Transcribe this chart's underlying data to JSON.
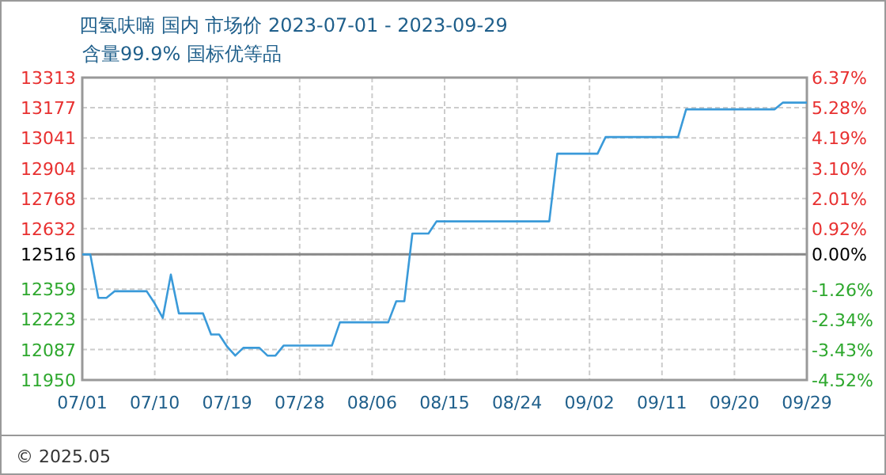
{
  "chart_data": {
    "type": "line",
    "title": "四氢呋喃 国内 市场价 2023-07-01 - 2023-09-29",
    "subtitle": "含量99.9% 国标优等品",
    "x": [
      "2023-07-01",
      "2023-07-02",
      "2023-07-03",
      "2023-07-04",
      "2023-07-05",
      "2023-07-09",
      "2023-07-10",
      "2023-07-11",
      "2023-07-12",
      "2023-07-13",
      "2023-07-16",
      "2023-07-17",
      "2023-07-18",
      "2023-07-19",
      "2023-07-20",
      "2023-07-21",
      "2023-07-23",
      "2023-07-24",
      "2023-07-25",
      "2023-07-26",
      "2023-08-01",
      "2023-08-02",
      "2023-08-08",
      "2023-08-09",
      "2023-08-10",
      "2023-08-11",
      "2023-08-13",
      "2023-08-14",
      "2023-08-28",
      "2023-08-29",
      "2023-09-03",
      "2023-09-04",
      "2023-09-13",
      "2023-09-14",
      "2023-09-25",
      "2023-09-26",
      "2023-09-29"
    ],
    "values": [
      12516,
      12516,
      12320,
      12320,
      12350,
      12350,
      12295,
      12230,
      12425,
      12250,
      12250,
      12155,
      12155,
      12100,
      12060,
      12095,
      12095,
      12060,
      12060,
      12105,
      12105,
      12210,
      12210,
      12305,
      12305,
      12610,
      12610,
      12665,
      12665,
      12970,
      12970,
      13045,
      13045,
      13170,
      13170,
      13200,
      13200
    ],
    "color": "#3a9ad9",
    "marker": "none",
    "line_style": "solid",
    "grid": true,
    "xlim": [
      "2023-07-01",
      "2023-09-29"
    ],
    "xticks": [
      {
        "value": "2023-07-01",
        "label": "07/01"
      },
      {
        "value": "2023-07-10",
        "label": "07/10"
      },
      {
        "value": "2023-07-19",
        "label": "07/19"
      },
      {
        "value": "2023-07-28",
        "label": "07/28"
      },
      {
        "value": "2023-08-06",
        "label": "08/06"
      },
      {
        "value": "2023-08-15",
        "label": "08/15"
      },
      {
        "value": "2023-08-24",
        "label": "08/24"
      },
      {
        "value": "2023-09-02",
        "label": "09/02"
      },
      {
        "value": "2023-09-11",
        "label": "09/11"
      },
      {
        "value": "2023-09-20",
        "label": "09/20"
      },
      {
        "value": "2023-09-29",
        "label": "09/29"
      }
    ],
    "ylim": [
      11950,
      13313
    ],
    "yticks": [
      11950,
      12087,
      12223,
      12359,
      12516,
      12632,
      12768,
      12904,
      13041,
      13177,
      13313
    ],
    "y2lim": [
      -4.52,
      6.37
    ],
    "y2ticks": [
      {
        "value": -4.52,
        "label": "-4.52%"
      },
      {
        "value": -3.43,
        "label": "-3.43%"
      },
      {
        "value": -2.34,
        "label": "-2.34%"
      },
      {
        "value": -1.26,
        "label": "-1.26%"
      },
      {
        "value": 0,
        "label": "0.00%"
      },
      {
        "value": 0.92,
        "label": "0.92%"
      },
      {
        "value": 2.01,
        "label": "2.01%"
      },
      {
        "value": 3.1,
        "label": "3.10%"
      },
      {
        "value": 4.19,
        "label": "4.19%"
      },
      {
        "value": 5.28,
        "label": "5.28%"
      },
      {
        "value": 6.37,
        "label": "6.37%"
      }
    ],
    "ref_lines": [
      {
        "axis": "y",
        "value": 12516,
        "color": "#888888"
      }
    ],
    "annotations": [
      "© 2025.05"
    ]
  }
}
